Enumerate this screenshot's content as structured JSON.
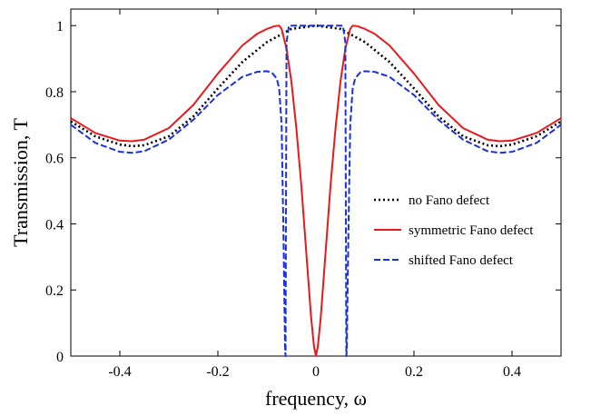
{
  "chart_data": {
    "type": "line",
    "title": "",
    "xlabel": "frequency, ω",
    "ylabel": "Transmission, T",
    "xlim": [
      -0.5,
      0.5
    ],
    "ylim": [
      0,
      1.05
    ],
    "xticks": [
      -0.4,
      -0.2,
      0,
      0.2,
      0.4
    ],
    "xtick_labels": [
      "-0.4",
      "-0.2",
      "0",
      "0.2",
      "0.4"
    ],
    "yticks": [
      0,
      0.2,
      0.4,
      0.6,
      0.8,
      1
    ],
    "ytick_labels": [
      "0",
      "0.2",
      "0.4",
      "0.6",
      "0.8",
      "1"
    ],
    "grid": false,
    "legend_position": "middle-right",
    "series": [
      {
        "name": "no Fano defect",
        "color": "#000000",
        "style": "dotted",
        "x": [
          -0.5,
          -0.45,
          -0.4,
          -0.375,
          -0.35,
          -0.3,
          -0.25,
          -0.2,
          -0.15,
          -0.1,
          -0.05,
          0,
          0.05,
          0.1,
          0.15,
          0.2,
          0.25,
          0.3,
          0.35,
          0.375,
          0.4,
          0.45,
          0.5
        ],
        "y": [
          0.71,
          0.665,
          0.64,
          0.635,
          0.638,
          0.665,
          0.725,
          0.81,
          0.89,
          0.95,
          0.99,
          1.0,
          0.99,
          0.95,
          0.89,
          0.81,
          0.725,
          0.665,
          0.638,
          0.635,
          0.64,
          0.665,
          0.71
        ]
      },
      {
        "name": "symmetric Fano defect",
        "color": "#e8191b",
        "style": "solid",
        "x": [
          -0.5,
          -0.45,
          -0.4,
          -0.375,
          -0.35,
          -0.3,
          -0.25,
          -0.2,
          -0.15,
          -0.12,
          -0.1,
          -0.085,
          -0.075,
          -0.07,
          -0.06,
          -0.05,
          -0.04,
          -0.03,
          -0.02,
          -0.01,
          -0.004,
          0,
          0.004,
          0.01,
          0.02,
          0.03,
          0.04,
          0.05,
          0.06,
          0.07,
          0.075,
          0.085,
          0.1,
          0.12,
          0.15,
          0.2,
          0.25,
          0.3,
          0.35,
          0.375,
          0.4,
          0.45,
          0.5
        ],
        "y": [
          0.72,
          0.675,
          0.652,
          0.65,
          0.655,
          0.69,
          0.76,
          0.855,
          0.94,
          0.975,
          0.99,
          0.998,
          1.0,
          0.99,
          0.93,
          0.83,
          0.69,
          0.52,
          0.32,
          0.12,
          0.03,
          0.0,
          0.03,
          0.12,
          0.32,
          0.52,
          0.69,
          0.83,
          0.93,
          0.99,
          1.0,
          0.998,
          0.99,
          0.975,
          0.94,
          0.855,
          0.76,
          0.69,
          0.655,
          0.65,
          0.652,
          0.675,
          0.72
        ]
      },
      {
        "name": "shifted Fano defect",
        "color": "#1a2fe0",
        "style": "dashed",
        "x": [
          -0.5,
          -0.45,
          -0.4,
          -0.375,
          -0.35,
          -0.3,
          -0.25,
          -0.2,
          -0.15,
          -0.12,
          -0.1,
          -0.09,
          -0.08,
          -0.075,
          -0.07,
          -0.066,
          -0.063,
          -0.062,
          -0.06,
          -0.055,
          -0.05,
          -0.03,
          0,
          0.03,
          0.05,
          0.055,
          0.06,
          0.062,
          0.063,
          0.066,
          0.07,
          0.075,
          0.08,
          0.09,
          0.1,
          0.12,
          0.15,
          0.2,
          0.25,
          0.3,
          0.35,
          0.375,
          0.4,
          0.45,
          0.5
        ],
        "y": [
          0.7,
          0.645,
          0.618,
          0.615,
          0.62,
          0.655,
          0.715,
          0.79,
          0.845,
          0.86,
          0.862,
          0.858,
          0.84,
          0.81,
          0.7,
          0.35,
          0.02,
          0.0,
          0.95,
          1.0,
          1.0,
          1.0,
          1.0,
          1.0,
          1.0,
          1.0,
          0.95,
          0.0,
          0.02,
          0.35,
          0.7,
          0.81,
          0.84,
          0.858,
          0.862,
          0.86,
          0.845,
          0.79,
          0.715,
          0.655,
          0.62,
          0.615,
          0.618,
          0.645,
          0.7
        ]
      }
    ]
  }
}
